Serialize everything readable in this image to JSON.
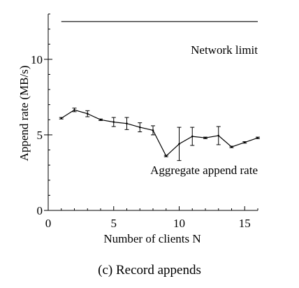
{
  "caption": "(c) Record appends",
  "chart_data": {
    "type": "line",
    "xlabel": "Number of clients N",
    "ylabel": "Append rate (MB/s)",
    "xlim": [
      0,
      16
    ],
    "ylim": [
      0,
      13
    ],
    "xticks": [
      0,
      5,
      10,
      15
    ],
    "yticks": [
      0,
      5,
      10
    ],
    "grid": false,
    "series": [
      {
        "name": "Network limit",
        "x": [
          1,
          16
        ],
        "y": [
          12.5,
          12.5
        ]
      },
      {
        "name": "Aggregate append rate",
        "x": [
          1,
          2,
          3,
          4,
          5,
          6,
          7,
          8,
          9,
          10,
          11,
          12,
          13,
          14,
          15,
          16
        ],
        "y": [
          6.1,
          6.65,
          6.4,
          6.0,
          5.85,
          5.75,
          5.5,
          5.3,
          3.6,
          4.4,
          4.9,
          4.8,
          4.95,
          4.2,
          4.5,
          4.8
        ],
        "err_low": [
          0.05,
          0.12,
          0.2,
          0.05,
          0.3,
          0.4,
          0.3,
          0.3,
          0.05,
          1.1,
          0.6,
          0.05,
          0.6,
          0.05,
          0.05,
          0.05
        ],
        "err_high": [
          0.05,
          0.12,
          0.2,
          0.05,
          0.3,
          0.4,
          0.3,
          0.3,
          0.05,
          1.1,
          0.6,
          0.05,
          0.6,
          0.05,
          0.05,
          0.05
        ]
      }
    ]
  }
}
